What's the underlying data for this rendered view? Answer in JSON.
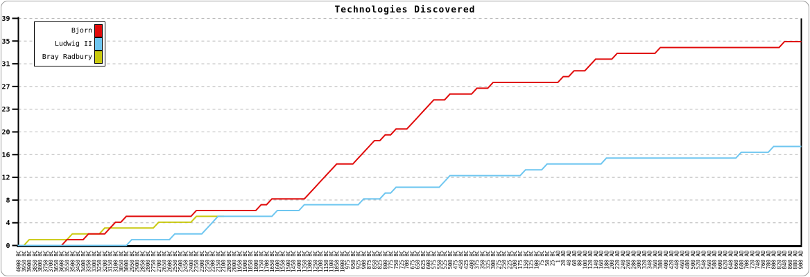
{
  "title": "Technologies Discovered",
  "legend": {
    "entries": [
      {
        "label": "Bjorn",
        "color": "#e00a0a"
      },
      {
        "label": "Ludwig II",
        "color": "#6ec6f0"
      },
      {
        "label": "Bray Radbury",
        "color": "#c9c90e"
      }
    ]
  },
  "colors": {
    "grid": "#b3b3b3",
    "axis": "#000000",
    "frame_border": "#999999",
    "background": "#ffffff"
  },
  "chart_data": {
    "type": "line",
    "title": "Technologies Discovered",
    "xlabel": "",
    "ylabel": "",
    "ylim": [
      0,
      39
    ],
    "y_tick_labels": [
      "0",
      "4",
      "8",
      "12",
      "16",
      "20",
      "23",
      "27",
      "31",
      "35",
      "39"
    ],
    "y_tick_step": 3.9,
    "grid": "horizontal-dashed",
    "legend_position": "top-left",
    "categories": [
      "4000 BC",
      "3950 BC",
      "3900 BC",
      "3850 BC",
      "3800 BC",
      "3750 BC",
      "3700 BC",
      "3650 BC",
      "3600 BC",
      "3550 BC",
      "3500 BC",
      "3450 BC",
      "3400 BC",
      "3350 BC",
      "3300 BC",
      "3250 BC",
      "3200 BC",
      "3150 BC",
      "3100 BC",
      "3050 BC",
      "3000 BC",
      "2950 BC",
      "2900 BC",
      "2850 BC",
      "2800 BC",
      "2750 BC",
      "2700 BC",
      "2650 BC",
      "2600 BC",
      "2550 BC",
      "2500 BC",
      "2450 BC",
      "2400 BC",
      "2350 BC",
      "2300 BC",
      "2250 BC",
      "2200 BC",
      "2150 BC",
      "2100 BC",
      "2050 BC",
      "2000 BC",
      "1950 BC",
      "1900 BC",
      "1850 BC",
      "1800 BC",
      "1750 BC",
      "1700 BC",
      "1650 BC",
      "1600 BC",
      "1550 BC",
      "1500 BC",
      "1450 BC",
      "1400 BC",
      "1350 BC",
      "1300 BC",
      "1250 BC",
      "1200 BC",
      "1150 BC",
      "1100 BC",
      "1050 BC",
      "1000 BC",
      "975 BC",
      "950 BC",
      "925 BC",
      "900 BC",
      "875 BC",
      "850 BC",
      "825 BC",
      "800 BC",
      "775 BC",
      "750 BC",
      "725 BC",
      "700 BC",
      "675 BC",
      "650 BC",
      "625 BC",
      "600 BC",
      "575 BC",
      "550 BC",
      "525 BC",
      "500 BC",
      "475 BC",
      "450 BC",
      "425 BC",
      "400 BC",
      "375 BC",
      "350 BC",
      "325 BC",
      "300 BC",
      "275 BC",
      "250 BC",
      "225 BC",
      "200 BC",
      "175 BC",
      "150 BC",
      "125 BC",
      "100 BC",
      "75 BC",
      "50 BC",
      "25 BC",
      "1 AD",
      "20 AD",
      "40 AD",
      "60 AD",
      "80 AD",
      "100 AD",
      "120 AD",
      "140 AD",
      "160 AD",
      "180 AD",
      "200 AD",
      "220 AD",
      "240 AD",
      "260 AD",
      "280 AD",
      "300 AD",
      "320 AD",
      "340 AD",
      "360 AD",
      "380 AD",
      "400 AD",
      "420 AD",
      "440 AD",
      "460 AD",
      "480 AD",
      "500 AD",
      "520 AD",
      "540 AD",
      "560 AD",
      "580 AD",
      "600 AD",
      "620 AD",
      "640 AD",
      "660 AD",
      "680 AD",
      "700 AD",
      "720 AD",
      "740 AD",
      "760 AD",
      "780 AD",
      "800 AD",
      "820 AD",
      "840 AD",
      "860 AD",
      "880 AD",
      "900 AD"
    ],
    "series": [
      {
        "name": "Bray Radbury",
        "color": "#c9c90e",
        "end_label": "2100 BC",
        "steps": [
          [
            "4000 BC",
            0
          ],
          [
            "3900 BC",
            1
          ],
          [
            "3500 BC",
            2
          ],
          [
            "3200 BC",
            3
          ],
          [
            "2700 BC",
            4
          ],
          [
            "2350 BC",
            5
          ]
        ]
      },
      {
        "name": "Bjorn",
        "color": "#e00a0a",
        "end_label": "900 AD",
        "steps": [
          [
            "4000 BC",
            0
          ],
          [
            "3550 BC",
            1
          ],
          [
            "3350 BC",
            2
          ],
          [
            "3150 BC",
            3
          ],
          [
            "3100 BC",
            4
          ],
          [
            "3000 BC",
            5
          ],
          [
            "2350 BC",
            6
          ],
          [
            "1750 BC",
            7
          ],
          [
            "1650 BC",
            8
          ],
          [
            "1300 BC",
            9
          ],
          [
            "1250 BC",
            10
          ],
          [
            "1200 BC",
            11
          ],
          [
            "1150 BC",
            12
          ],
          [
            "1100 BC",
            13
          ],
          [
            "1050 BC",
            14
          ],
          [
            "925 BC",
            15
          ],
          [
            "900 BC",
            16
          ],
          [
            "875 BC",
            17
          ],
          [
            "850 BC",
            18
          ],
          [
            "800 BC",
            19
          ],
          [
            "750 BC",
            20
          ],
          [
            "675 BC",
            21
          ],
          [
            "650 BC",
            22
          ],
          [
            "625 BC",
            23
          ],
          [
            "600 BC",
            24
          ],
          [
            "575 BC",
            25
          ],
          [
            "500 BC",
            26
          ],
          [
            "375 BC",
            27
          ],
          [
            "300 BC",
            28
          ],
          [
            "20 AD",
            29
          ],
          [
            "60 AD",
            30
          ],
          [
            "120 AD",
            31
          ],
          [
            "140 AD",
            32
          ],
          [
            "220 AD",
            33
          ],
          [
            "380 AD",
            34
          ],
          [
            "840 AD",
            35
          ]
        ]
      },
      {
        "name": "Ludwig II",
        "color": "#6ec6f0",
        "end_label": "900 AD",
        "steps": [
          [
            "4000 BC",
            0
          ],
          [
            "2950 BC",
            1
          ],
          [
            "2550 BC",
            2
          ],
          [
            "2250 BC",
            3
          ],
          [
            "2200 BC",
            4
          ],
          [
            "2150 BC",
            5
          ],
          [
            "1600 BC",
            6
          ],
          [
            "1350 BC",
            7
          ],
          [
            "900 BC",
            8
          ],
          [
            "800 BC",
            9
          ],
          [
            "750 BC",
            10
          ],
          [
            "525 BC",
            11
          ],
          [
            "500 BC",
            12
          ],
          [
            "150 BC",
            13
          ],
          [
            "50 BC",
            14
          ],
          [
            "180 AD",
            15
          ],
          [
            "680 AD",
            16
          ],
          [
            "800 AD",
            17
          ]
        ]
      }
    ]
  }
}
